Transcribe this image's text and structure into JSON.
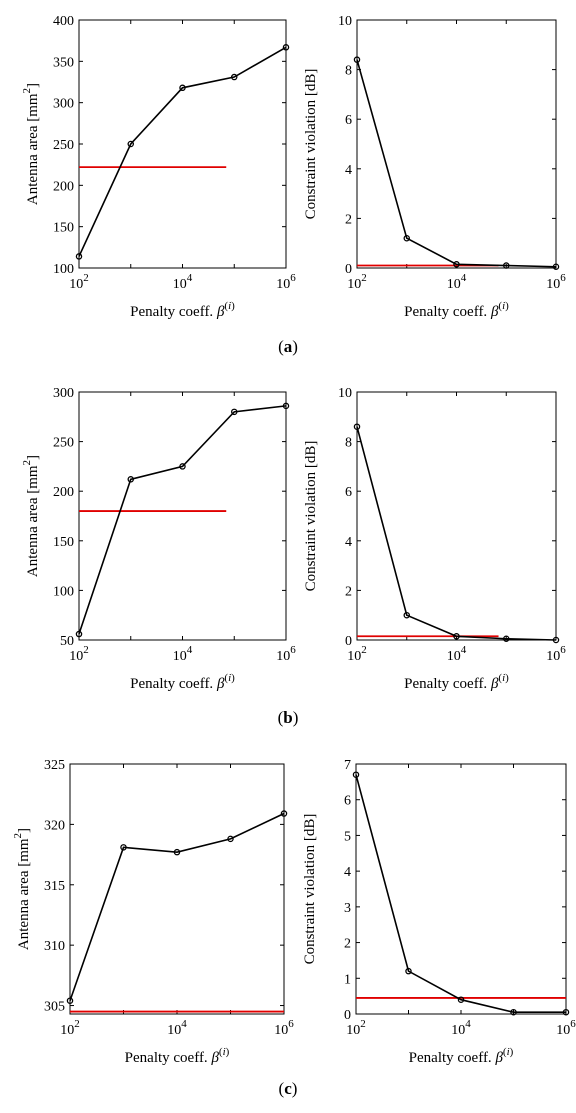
{
  "panels": [
    {
      "label": "(a)"
    },
    {
      "label": "(b)"
    },
    {
      "label": "(c)"
    }
  ],
  "colors": {
    "series": "#000000",
    "reference": "#e00000"
  },
  "chart_data": [
    {
      "id": "a-area",
      "type": "line",
      "xscale": "log",
      "xlabel": "Penalty coeff. β(i)",
      "ylabel": "Antenna area [mm2]",
      "xlim": [
        100,
        1000000
      ],
      "ylim": [
        100,
        400
      ],
      "xticks": [
        100,
        10000,
        1000000
      ],
      "xtick_labels": [
        "10^2",
        "10^4",
        "10^6"
      ],
      "yticks": [
        100,
        150,
        200,
        250,
        300,
        350,
        400
      ],
      "ytick_labels": [
        "100",
        "150",
        "200",
        "250",
        "300",
        "350",
        "400"
      ],
      "x": [
        100,
        1000,
        10000,
        100000,
        1000000
      ],
      "y": [
        114,
        250,
        318,
        331,
        367
      ],
      "reference_line": {
        "y": 222,
        "x_range": [
          100,
          70000
        ]
      }
    },
    {
      "id": "a-violation",
      "type": "line",
      "xscale": "log",
      "xlabel": "Penalty coeff. β(i)",
      "ylabel": "Constraint violation [dB]",
      "xlim": [
        100,
        1000000
      ],
      "ylim": [
        0,
        10
      ],
      "xticks": [
        100,
        10000,
        1000000
      ],
      "xtick_labels": [
        "10^2",
        "10^4",
        "10^6"
      ],
      "yticks": [
        0,
        2,
        4,
        6,
        8,
        10
      ],
      "ytick_labels": [
        "0",
        "2",
        "4",
        "6",
        "8",
        "10"
      ],
      "x": [
        100,
        1000,
        10000,
        100000,
        1000000
      ],
      "y": [
        8.4,
        1.2,
        0.15,
        0.1,
        0.05
      ],
      "reference_line": {
        "y": 0.1,
        "x_range": [
          100,
          70000
        ]
      }
    },
    {
      "id": "b-area",
      "type": "line",
      "xscale": "log",
      "xlabel": "Penalty coeff. β(i)",
      "ylabel": "Antenna area [mm2]",
      "xlim": [
        100,
        1000000
      ],
      "ylim": [
        50,
        300
      ],
      "xticks": [
        100,
        10000,
        1000000
      ],
      "xtick_labels": [
        "10^2",
        "10^4",
        "10^6"
      ],
      "yticks": [
        50,
        100,
        150,
        200,
        250,
        300
      ],
      "ytick_labels": [
        "50",
        "100",
        "150",
        "200",
        "250",
        "300"
      ],
      "x": [
        100,
        1000,
        10000,
        100000,
        1000000
      ],
      "y": [
        56,
        212,
        225,
        280,
        286
      ],
      "reference_line": {
        "y": 180,
        "x_range": [
          100,
          70000
        ]
      }
    },
    {
      "id": "b-violation",
      "type": "line",
      "xscale": "log",
      "xlabel": "Penalty coeff. β(i)",
      "ylabel": "Constraint violation [dB]",
      "xlim": [
        100,
        1000000
      ],
      "ylim": [
        0,
        10
      ],
      "xticks": [
        100,
        10000,
        1000000
      ],
      "xtick_labels": [
        "10^2",
        "10^4",
        "10^6"
      ],
      "yticks": [
        0,
        2,
        4,
        6,
        8,
        10
      ],
      "ytick_labels": [
        "0",
        "2",
        "4",
        "6",
        "8",
        "10"
      ],
      "x": [
        100,
        1000,
        10000,
        100000,
        1000000
      ],
      "y": [
        8.6,
        1.0,
        0.15,
        0.05,
        0.0
      ],
      "reference_line": {
        "y": 0.15,
        "x_range": [
          100,
          70000
        ]
      }
    },
    {
      "id": "c-area",
      "type": "line",
      "xscale": "log",
      "xlabel": "Penalty coeff. β(i)",
      "ylabel": "Antenna area [mm2]",
      "xlim": [
        100,
        1000000
      ],
      "ylim": [
        304.3,
        325
      ],
      "xticks": [
        100,
        10000,
        1000000
      ],
      "xtick_labels": [
        "10^2",
        "10^4",
        "10^6"
      ],
      "yticks": [
        305,
        310,
        315,
        320,
        325
      ],
      "ytick_labels": [
        "305",
        "310",
        "315",
        "320",
        "325"
      ],
      "x": [
        100,
        1000,
        10000,
        100000,
        1000000
      ],
      "y": [
        305.4,
        318.1,
        317.7,
        318.8,
        320.9
      ],
      "reference_line": {
        "y": 304.5,
        "x_range": [
          100,
          1000000
        ]
      }
    },
    {
      "id": "c-violation",
      "type": "line",
      "xscale": "log",
      "xlabel": "Penalty coeff. β(i)",
      "ylabel": "Constraint violation [dB]",
      "xlim": [
        100,
        1000000
      ],
      "ylim": [
        0,
        7
      ],
      "xticks": [
        100,
        10000,
        1000000
      ],
      "xtick_labels": [
        "10^2",
        "10^4",
        "10^6"
      ],
      "yticks": [
        0,
        1,
        2,
        3,
        4,
        5,
        6,
        7
      ],
      "ytick_labels": [
        "0",
        "1",
        "2",
        "3",
        "4",
        "5",
        "6",
        "7"
      ],
      "x": [
        100,
        1000,
        10000,
        100000,
        1000000
      ],
      "y": [
        6.7,
        1.2,
        0.4,
        0.05,
        0.05
      ],
      "reference_line": {
        "y": 0.45,
        "x_range": [
          100,
          1000000
        ]
      }
    }
  ]
}
